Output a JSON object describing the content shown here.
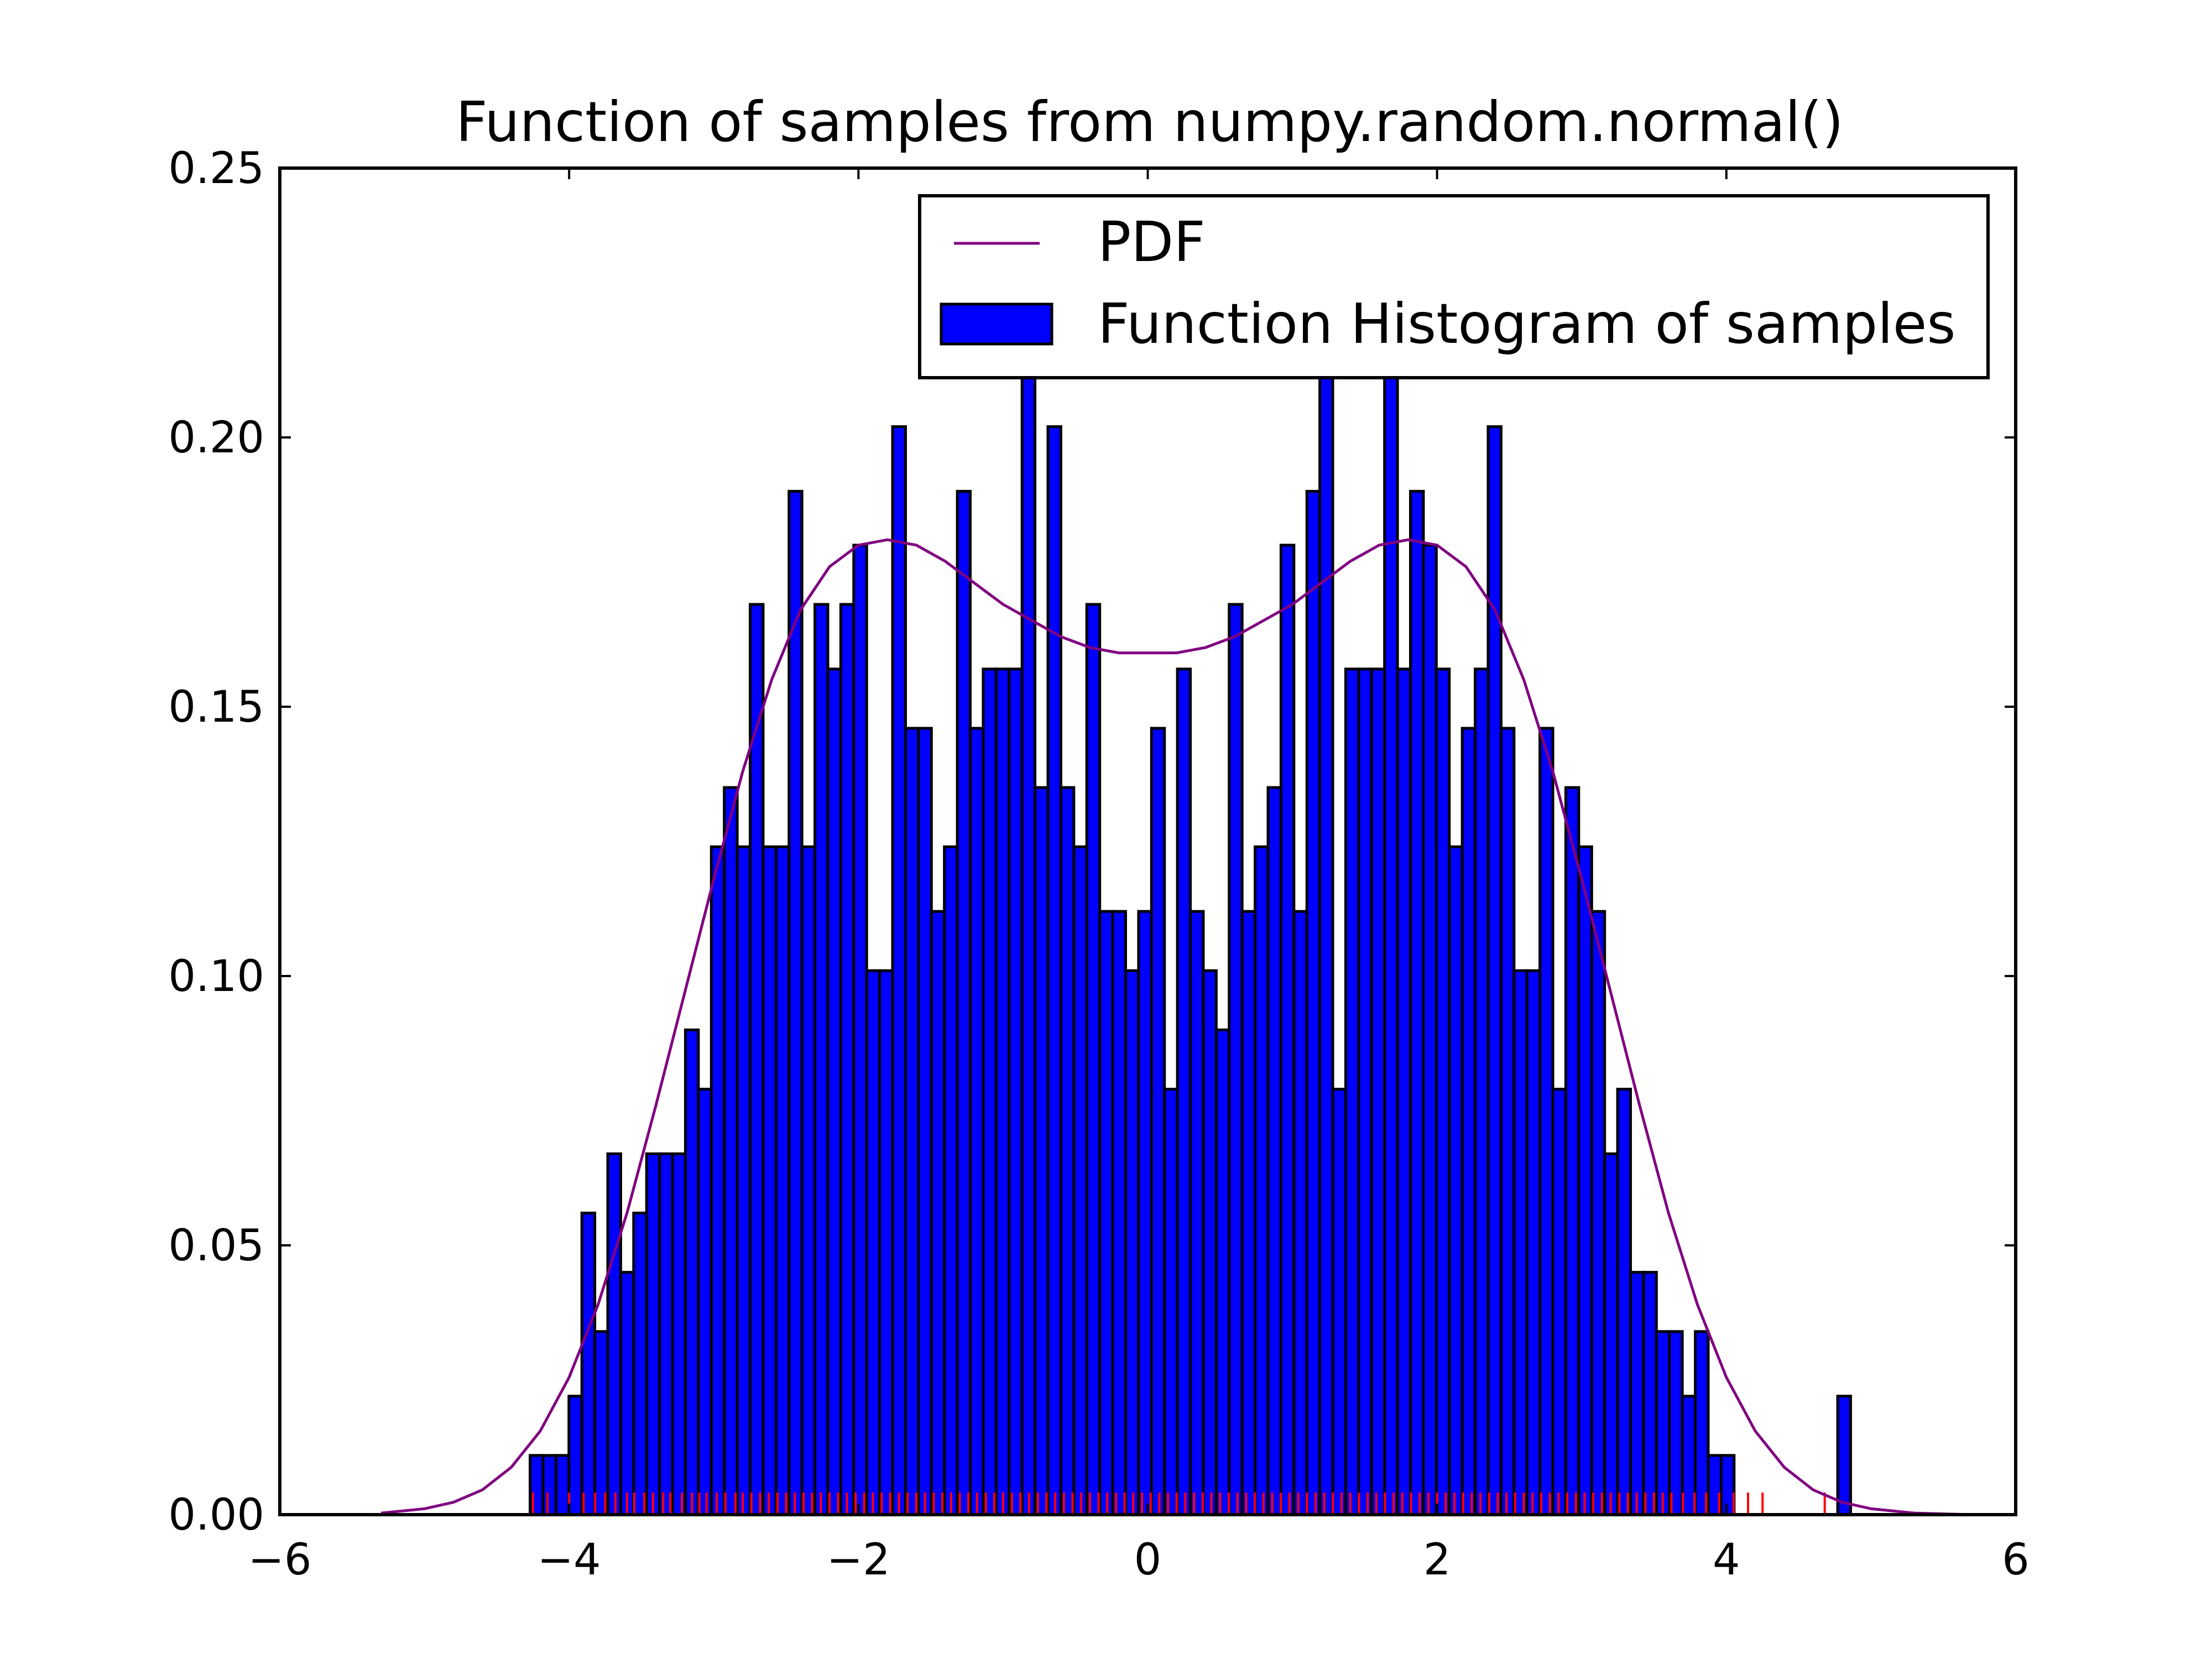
{
  "chart_data": {
    "type": "bar",
    "title": "Function of samples from numpy.random.normal()",
    "xlabel": "",
    "ylabel": "",
    "xlim": [
      -6,
      6
    ],
    "ylim": [
      0,
      0.25
    ],
    "xticks": [
      -6,
      -4,
      -2,
      0,
      2,
      4,
      6
    ],
    "xtick_labels": [
      "−6",
      "−4",
      "−2",
      "0",
      "2",
      "4",
      "6"
    ],
    "yticks": [
      0,
      0.05,
      0.1,
      0.15,
      0.2,
      0.25
    ],
    "ytick_labels": [
      "0.00",
      "0.05",
      "0.10",
      "0.15",
      "0.20",
      "0.25"
    ],
    "grid": false,
    "legend": {
      "placement": "upper right",
      "entries": [
        "PDF",
        "Function Histogram of samples"
      ]
    },
    "series": [
      {
        "name": "Function Histogram of samples",
        "kind": "histogram",
        "bin_start": -4.27,
        "bin_width": 0.0895,
        "color": "#0000ff",
        "edge_color": "#000000",
        "values": [
          0.011,
          0.011,
          0.011,
          0.022,
          0.056,
          0.034,
          0.067,
          0.045,
          0.056,
          0.067,
          0.067,
          0.067,
          0.09,
          0.079,
          0.124,
          0.135,
          0.124,
          0.169,
          0.124,
          0.124,
          0.19,
          0.124,
          0.169,
          0.157,
          0.169,
          0.18,
          0.101,
          0.101,
          0.202,
          0.146,
          0.146,
          0.112,
          0.124,
          0.19,
          0.146,
          0.157,
          0.157,
          0.157,
          0.213,
          0.135,
          0.202,
          0.135,
          0.124,
          0.169,
          0.112,
          0.112,
          0.101,
          0.112,
          0.146,
          0.079,
          0.157,
          0.112,
          0.101,
          0.09,
          0.169,
          0.112,
          0.124,
          0.135,
          0.18,
          0.112,
          0.19,
          0.213,
          0.079,
          0.157,
          0.157,
          0.157,
          0.213,
          0.157,
          0.19,
          0.18,
          0.157,
          0.124,
          0.146,
          0.157,
          0.202,
          0.146,
          0.101,
          0.101,
          0.146,
          0.079,
          0.135,
          0.124,
          0.112,
          0.067,
          0.079,
          0.045,
          0.045,
          0.034,
          0.034,
          0.022,
          0.034,
          0.011,
          0.011,
          0,
          0,
          0,
          0,
          0,
          0,
          0,
          0,
          0.022
        ]
      },
      {
        "name": "PDF",
        "kind": "line",
        "color": "#800080",
        "x": [
          -5.3,
          -5.0,
          -4.8,
          -4.6,
          -4.4,
          -4.2,
          -4.0,
          -3.8,
          -3.6,
          -3.4,
          -3.2,
          -3.0,
          -2.8,
          -2.6,
          -2.4,
          -2.2,
          -2.0,
          -1.8,
          -1.6,
          -1.4,
          -1.2,
          -1.0,
          -0.8,
          -0.6,
          -0.4,
          -0.2,
          0.0,
          0.2,
          0.4,
          0.6,
          0.8,
          1.0,
          1.2,
          1.4,
          1.6,
          1.8,
          2.0,
          2.2,
          2.4,
          2.6,
          2.8,
          3.0,
          3.2,
          3.4,
          3.6,
          3.8,
          4.0,
          4.2,
          4.4,
          4.6,
          4.8,
          5.0,
          5.3,
          5.7
        ],
        "y": [
          0.0003,
          0.0011,
          0.0023,
          0.0046,
          0.0088,
          0.0155,
          0.0255,
          0.039,
          0.056,
          0.076,
          0.097,
          0.118,
          0.138,
          0.155,
          0.168,
          0.176,
          0.18,
          0.181,
          0.18,
          0.177,
          0.173,
          0.169,
          0.166,
          0.163,
          0.161,
          0.16,
          0.16,
          0.16,
          0.161,
          0.163,
          0.166,
          0.169,
          0.173,
          0.177,
          0.18,
          0.181,
          0.18,
          0.176,
          0.168,
          0.155,
          0.138,
          0.118,
          0.097,
          0.076,
          0.056,
          0.039,
          0.0255,
          0.0155,
          0.0088,
          0.0046,
          0.0023,
          0.0011,
          0.0003,
          0.0
        ]
      },
      {
        "name": "samples",
        "kind": "rug",
        "color": "#ff0000",
        "x": [
          -4.25,
          -4.15,
          -4.0,
          -3.9,
          -3.82,
          -3.75,
          -3.68,
          -3.6,
          -3.55,
          -3.48,
          -3.42,
          -3.35,
          -3.3,
          -3.22,
          -3.15,
          -3.1,
          -3.05,
          -2.98,
          -2.92,
          -2.85,
          -2.8,
          -2.74,
          -2.68,
          -2.62,
          -2.56,
          -2.5,
          -2.44,
          -2.38,
          -2.32,
          -2.26,
          -2.2,
          -2.14,
          -2.08,
          -2.02,
          -1.96,
          -1.9,
          -1.84,
          -1.78,
          -1.72,
          -1.66,
          -1.6,
          -1.54,
          -1.48,
          -1.42,
          -1.36,
          -1.3,
          -1.24,
          -1.18,
          -1.12,
          -1.06,
          -1.0,
          -0.94,
          -0.88,
          -0.82,
          -0.76,
          -0.7,
          -0.64,
          -0.58,
          -0.52,
          -0.46,
          -0.4,
          -0.34,
          -0.28,
          -0.22,
          -0.16,
          -0.1,
          -0.04,
          0.02,
          0.08,
          0.14,
          0.2,
          0.26,
          0.32,
          0.38,
          0.44,
          0.5,
          0.56,
          0.62,
          0.68,
          0.74,
          0.8,
          0.86,
          0.92,
          0.98,
          1.04,
          1.1,
          1.16,
          1.22,
          1.28,
          1.34,
          1.4,
          1.46,
          1.52,
          1.58,
          1.64,
          1.7,
          1.76,
          1.82,
          1.88,
          1.94,
          2.0,
          2.06,
          2.12,
          2.18,
          2.24,
          2.3,
          2.36,
          2.42,
          2.48,
          2.54,
          2.6,
          2.66,
          2.72,
          2.78,
          2.84,
          2.9,
          2.96,
          3.02,
          3.08,
          3.14,
          3.2,
          3.26,
          3.32,
          3.38,
          3.44,
          3.5,
          3.56,
          3.62,
          3.7,
          3.78,
          3.86,
          3.95,
          4.05,
          4.15,
          4.25,
          4.68
        ]
      }
    ]
  }
}
